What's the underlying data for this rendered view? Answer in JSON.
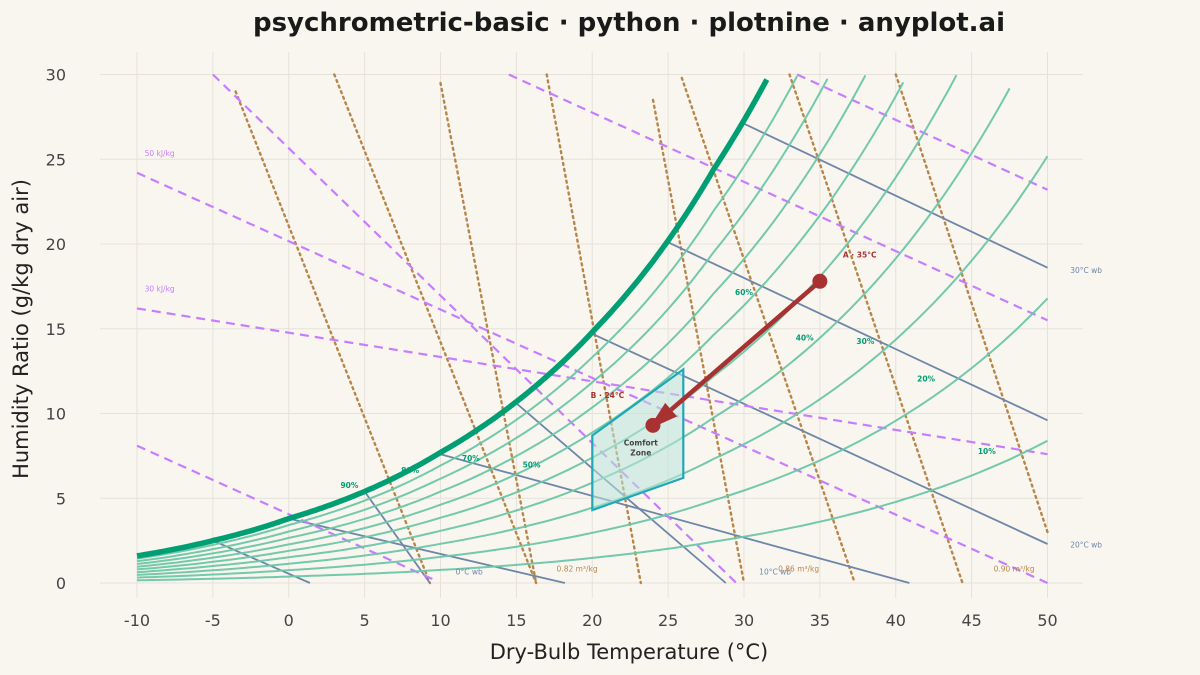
{
  "chart_data": {
    "type": "line",
    "title": "psychrometric-basic · python · plotnine · anyplot.ai",
    "xlabel": "Dry-Bulb Temperature (°C)",
    "ylabel": "Humidity Ratio (g/kg dry air)",
    "xlim": [
      -15,
      52
    ],
    "ylim": [
      -1,
      30.5
    ],
    "x_ticks": [
      -10,
      -5,
      0,
      5,
      10,
      15,
      20,
      25,
      30,
      35,
      40,
      45,
      50
    ],
    "y_ticks": [
      0,
      5,
      10,
      15,
      20,
      25,
      30
    ],
    "grid": true,
    "colors": {
      "background": "#f9f6f0",
      "grid": "#e6e2da",
      "saturation": "#009e73",
      "rh_lines": "#6cc6a6",
      "enthalpy": "#c77dff",
      "wet_bulb": "#6e86a8",
      "specific_volume": "#b8864a",
      "process": "#a83232",
      "comfort_fill": "#b9e4dc",
      "comfort_edge": "#1fa8b8"
    },
    "saturation_curve": {
      "points": [
        [
          -10,
          1.6
        ],
        [
          -5,
          2.5
        ],
        [
          0,
          3.8
        ],
        [
          5,
          5.4
        ],
        [
          10,
          7.7
        ],
        [
          15,
          10.7
        ],
        [
          20,
          14.8
        ],
        [
          25,
          20.2
        ],
        [
          28,
          24.4
        ],
        [
          31.5,
          29.7
        ]
      ]
    },
    "rh_curves": [
      {
        "rh": 90,
        "label": "90%",
        "label_pos": [
          4,
          5.6
        ]
      },
      {
        "rh": 80,
        "label": "80%",
        "label_pos": [
          8,
          6.5
        ]
      },
      {
        "rh": 70,
        "label": "70%",
        "label_pos": [
          12,
          7.2
        ]
      },
      {
        "rh": 60,
        "label": "60%",
        "label_pos": [
          30,
          17.0
        ]
      },
      {
        "rh": 50,
        "label": "50%",
        "label_pos": [
          16,
          6.8
        ]
      },
      {
        "rh": 40,
        "label": "40%",
        "label_pos": [
          34,
          14.3
        ]
      },
      {
        "rh": 30,
        "label": "30%",
        "label_pos": [
          38,
          14.1
        ]
      },
      {
        "rh": 20,
        "label": "20%",
        "label_pos": [
          42,
          11.9
        ]
      },
      {
        "rh": 10,
        "label": "10%",
        "label_pos": [
          46,
          7.6
        ]
      }
    ],
    "enthalpy_lines": [
      {
        "name": "50 kJ/kg",
        "points": [
          [
            -10,
            24.2
          ],
          [
            50,
            0
          ]
        ],
        "label_pos": [
          -9.5,
          25.2
        ]
      },
      {
        "name": "30 kJ/kg",
        "points": [
          [
            -10,
            16.2
          ],
          [
            50,
            7.6
          ]
        ],
        "label_pos": [
          -9.5,
          17.2
        ]
      },
      {
        "name": "",
        "points": [
          [
            -10,
            8.1
          ],
          [
            9.8,
            0.1
          ]
        ]
      },
      {
        "name": "",
        "points": [
          [
            -5,
            30.0
          ],
          [
            29.5,
            0.0
          ]
        ]
      },
      {
        "name": "",
        "points": [
          [
            14.5,
            30.0
          ],
          [
            50,
            15.5
          ]
        ]
      },
      {
        "name": "",
        "points": [
          [
            33.5,
            30.0
          ],
          [
            50,
            23.2
          ]
        ]
      }
    ],
    "wet_bulb_lines": [
      {
        "name": "30°C wb",
        "points": [
          [
            30.0,
            27.1
          ],
          [
            50,
            18.6
          ]
        ],
        "label_pos": [
          51.5,
          18.3
        ]
      },
      {
        "name": "20°C wb",
        "points": [
          [
            20.0,
            14.7
          ],
          [
            50,
            2.3
          ]
        ],
        "label_pos": [
          51.5,
          2.1
        ]
      },
      {
        "name": "10°C wb",
        "points": [
          [
            10.0,
            7.6
          ],
          [
            40.9,
            0.0
          ]
        ],
        "label_pos": [
          31.0,
          0.5
        ]
      },
      {
        "name": "0°C wb",
        "points": [
          [
            0.0,
            3.8
          ],
          [
            18.2,
            0.0
          ]
        ],
        "label_pos": [
          11.0,
          0.5
        ]
      },
      {
        "name": "",
        "points": [
          [
            -5,
            2.5
          ],
          [
            1.4,
            0.0
          ]
        ]
      },
      {
        "name": "",
        "points": [
          [
            25,
            20.1
          ],
          [
            50,
            9.6
          ]
        ]
      },
      {
        "name": "",
        "points": [
          [
            15,
            10.6
          ],
          [
            28.8,
            0.0
          ]
        ]
      },
      {
        "name": "",
        "points": [
          [
            5,
            5.4
          ],
          [
            9.3,
            0.0
          ]
        ]
      }
    ],
    "specific_volume_lines": [
      {
        "name": "0.82 m³/kg",
        "points": [
          [
            10,
            29.5
          ],
          [
            16.3,
            0.0
          ]
        ],
        "label_pos": [
          19,
          0.5
        ]
      },
      {
        "name": "0.86 m³/kg",
        "points": [
          [
            25.9,
            29.8
          ],
          [
            37.3,
            0.0
          ]
        ],
        "label_pos": [
          33.6,
          0.5
        ]
      },
      {
        "name": "0.90 m³/kg",
        "points": [
          [
            40,
            30.0
          ],
          [
            50,
            3.0
          ]
        ],
        "label_pos": [
          47.8,
          0.5
        ]
      },
      {
        "name": "",
        "points": [
          [
            -3.5,
            29.0
          ],
          [
            9.3,
            0.0
          ]
        ]
      },
      {
        "name": "",
        "points": [
          [
            3,
            30.0
          ],
          [
            16.3,
            0.0
          ]
        ]
      },
      {
        "name": "",
        "points": [
          [
            17,
            30.0
          ],
          [
            23.2,
            0.0
          ]
        ]
      },
      {
        "name": "",
        "points": [
          [
            24,
            28.5
          ],
          [
            30,
            0.0
          ]
        ]
      },
      {
        "name": "",
        "points": [
          [
            33,
            30.0
          ],
          [
            44.4,
            0.0
          ]
        ]
      }
    ],
    "comfort_zone": {
      "label_line1": "Comfort",
      "label_line2": "Zone",
      "polygon": [
        [
          20,
          4.3
        ],
        [
          26,
          6.2
        ],
        [
          26,
          12.6
        ],
        [
          20,
          8.7
        ]
      ],
      "label_pos": [
        23.2,
        8.0
      ]
    },
    "process": {
      "start": {
        "label": "A · 35°C",
        "x": 35,
        "y": 17.8
      },
      "end": {
        "label": "B · 24°C",
        "x": 24,
        "y": 9.3
      }
    }
  }
}
